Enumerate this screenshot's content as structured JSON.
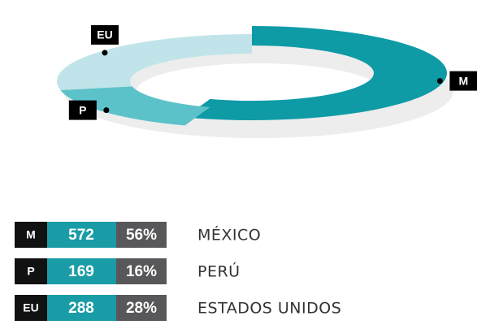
{
  "chart_data": {
    "type": "pie",
    "donut": true,
    "categories": [
      "M",
      "P",
      "EU"
    ],
    "names": [
      "MÉXICO",
      "PERÚ",
      "ESTADOS UNIDOS"
    ],
    "values": [
      572,
      169,
      288
    ],
    "shares": [
      "56%",
      "16%",
      "28%"
    ],
    "colors": [
      "#0e9ba6",
      "#5cc2ca",
      "#c0e4e9"
    ]
  }
}
